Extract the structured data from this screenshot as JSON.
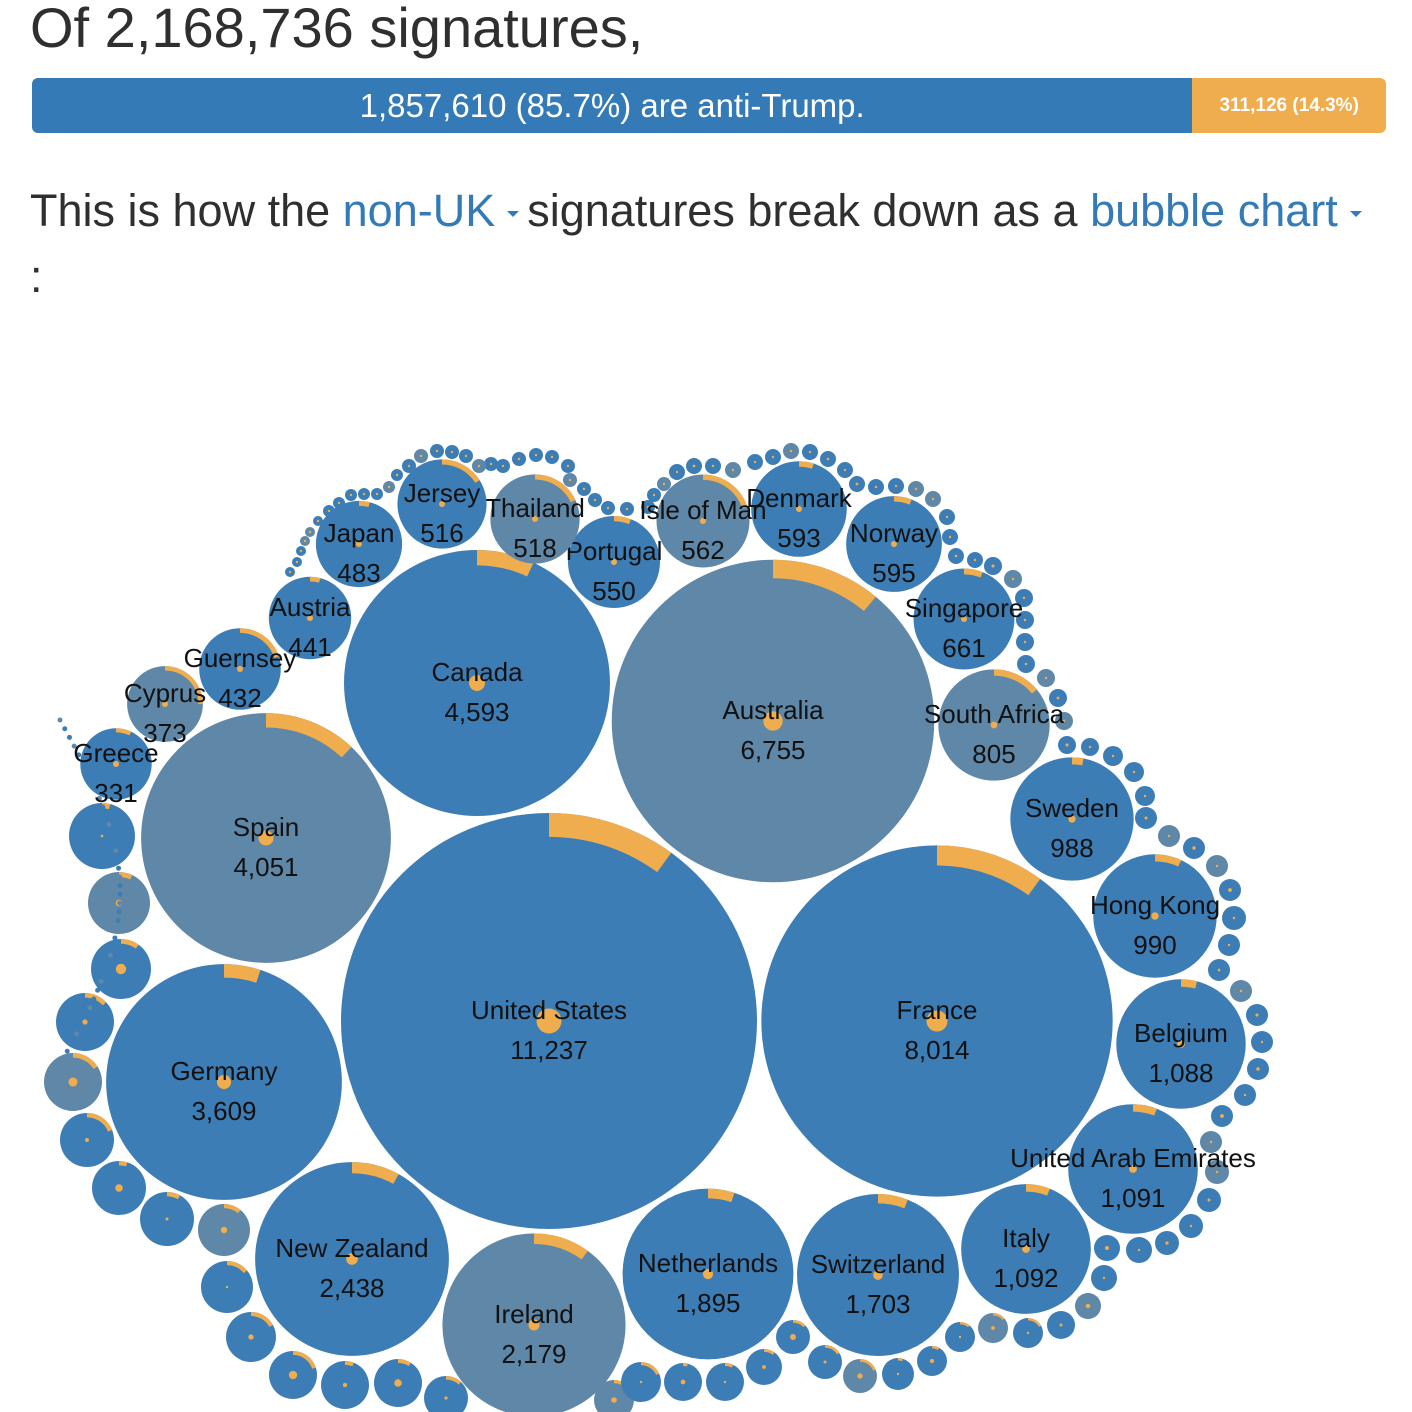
{
  "header": {
    "headline": "Of 2,168,736 signatures,",
    "anti_label": "1,857,610 (85.7%) are anti-Trump.",
    "pro_label": "311,126 (14.3%)",
    "anti_fraction": 0.857,
    "sentence_start": "This is how the",
    "filter_selected": "non-UK",
    "sentence_middle": "signatures break down as a",
    "view_selected": "bubble chart",
    "sentence_end": ":"
  },
  "colors": {
    "anti": "#337ab7",
    "pro": "#f0ad4e",
    "bubble": "#3d7db5",
    "bubble_muted": "#5f87a7"
  },
  "chart_data": {
    "type": "bubble",
    "series": [
      {
        "name": "anti-Trump",
        "color": "#337ab7"
      },
      {
        "name": "pro-Trump",
        "color": "#f0ad4e"
      }
    ],
    "labeled": [
      {
        "country": "United States",
        "value": "11,237",
        "n": 11237,
        "pro": 0.1
      },
      {
        "country": "France",
        "value": "8,014",
        "n": 8014,
        "pro": 0.1
      },
      {
        "country": "Australia",
        "value": "6,755",
        "n": 6755,
        "pro": 0.11
      },
      {
        "country": "Canada",
        "value": "4,593",
        "n": 4593,
        "pro": 0.07
      },
      {
        "country": "Spain",
        "value": "4,051",
        "n": 4051,
        "pro": 0.12
      },
      {
        "country": "Germany",
        "value": "3,609",
        "n": 3609,
        "pro": 0.05
      },
      {
        "country": "New Zealand",
        "value": "2,438",
        "n": 2438,
        "pro": 0.08
      },
      {
        "country": "Ireland",
        "value": "2,179",
        "n": 2179,
        "pro": 0.1
      },
      {
        "country": "Netherlands",
        "value": "1,895",
        "n": 1895,
        "pro": 0.05
      },
      {
        "country": "Switzerland",
        "value": "1,703",
        "n": 1703,
        "pro": 0.06
      },
      {
        "country": "Italy",
        "value": "1,092",
        "n": 1092,
        "pro": 0.06
      },
      {
        "country": "United Arab Emirates",
        "value": "1,091",
        "n": 1091,
        "pro": 0.06
      },
      {
        "country": "Belgium",
        "value": "1,088",
        "n": 1088,
        "pro": 0.04
      },
      {
        "country": "Hong Kong",
        "value": "990",
        "n": 990,
        "pro": 0.07
      },
      {
        "country": "Sweden",
        "value": "988",
        "n": 988,
        "pro": 0.03
      },
      {
        "country": "South Africa",
        "value": "805",
        "n": 805,
        "pro": 0.14
      },
      {
        "country": "Singapore",
        "value": "661",
        "n": 661,
        "pro": 0.06
      },
      {
        "country": "Norway",
        "value": "595",
        "n": 595,
        "pro": 0.06
      },
      {
        "country": "Denmark",
        "value": "593",
        "n": 593,
        "pro": 0.05
      },
      {
        "country": "Isle of Man",
        "value": "562",
        "n": 562,
        "pro": 0.2
      },
      {
        "country": "Portugal",
        "value": "550",
        "n": 550,
        "pro": 0.06
      },
      {
        "country": "Thailand",
        "value": "518",
        "n": 518,
        "pro": 0.18
      },
      {
        "country": "Jersey",
        "value": "516",
        "n": 516,
        "pro": 0.16
      },
      {
        "country": "Japan",
        "value": "483",
        "n": 483,
        "pro": 0.04
      },
      {
        "country": "Austria",
        "value": "441",
        "n": 441,
        "pro": 0.04
      },
      {
        "country": "Guernsey",
        "value": "432",
        "n": 432,
        "pro": 0.2
      },
      {
        "country": "Cyprus",
        "value": "373",
        "n": 373,
        "pro": 0.25
      },
      {
        "country": "Greece",
        "value": "331",
        "n": 331,
        "pro": 0.07
      }
    ],
    "unlabeled_bubble_count": 120
  }
}
